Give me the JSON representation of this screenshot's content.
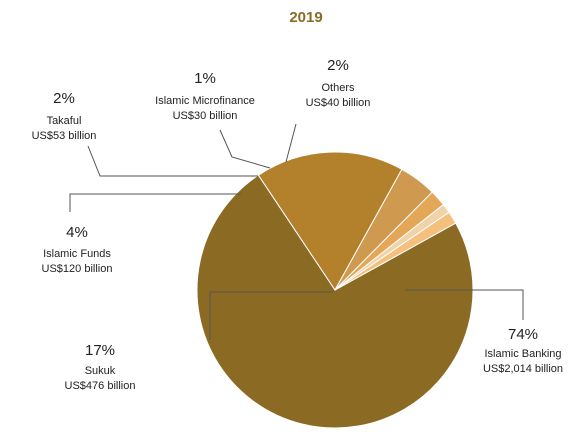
{
  "chart_data": {
    "type": "pie",
    "title": "2019",
    "slices": [
      {
        "label": "Islamic Banking",
        "percent_label": "74%",
        "value_label": "US$2,014 billion",
        "value": 2014,
        "color": "#8b6a23"
      },
      {
        "label": "Sukuk",
        "percent_label": "17%",
        "value_label": "US$476 billion",
        "value": 476,
        "color": "#b3812b"
      },
      {
        "label": "Islamic Funds",
        "percent_label": "4%",
        "value_label": "US$120 billion",
        "value": 120,
        "color": "#cf9a50"
      },
      {
        "label": "Takaful",
        "percent_label": "2%",
        "value_label": "US$53 billion",
        "value": 53,
        "color": "#e3a757"
      },
      {
        "label": "Islamic Microfinance",
        "percent_label": "1%",
        "value_label": "US$30 billion",
        "value": 30,
        "color": "#f2d3a8"
      },
      {
        "label": "Others",
        "percent_label": "2%",
        "value_label": "US$40 billion",
        "value": 40,
        "color": "#f5bf7d"
      }
    ],
    "colors": {
      "title": "#8b6a23",
      "text": "#222222",
      "leader": "#555555"
    }
  }
}
